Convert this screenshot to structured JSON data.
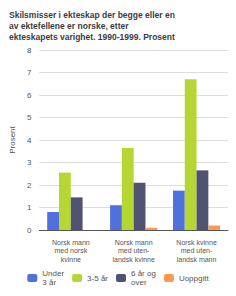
{
  "chart_data": {
    "type": "bar",
    "title": "Skilsmisser i ekteskap der begge eller en\nav ektefellene er norske, etter\nekteskapets varighet. 1990-1999. Prosent",
    "ylabel": "Prosent",
    "categories": [
      "Norsk mann\nmed norsk\nkvinne",
      "Norsk mann\nmed uten-\nlandsk kvinne",
      "Norsk kvinne\nmed uten-\nlandsk mann"
    ],
    "series": [
      {
        "name": "Under\n3 år",
        "values": [
          0.8,
          1.1,
          1.75
        ]
      },
      {
        "name": "3-5 år",
        "values": [
          2.55,
          3.65,
          6.7
        ]
      },
      {
        "name": "6 år og\nover",
        "values": [
          1.45,
          2.1,
          2.65
        ]
      },
      {
        "name": "Uoppgitt",
        "values": [
          0.0,
          0.1,
          0.2
        ]
      }
    ],
    "ylim": [
      0,
      8
    ],
    "yticks": [
      0,
      1,
      2,
      3,
      4,
      5,
      6,
      7,
      8
    ],
    "grid": true,
    "legend": "bottom"
  }
}
